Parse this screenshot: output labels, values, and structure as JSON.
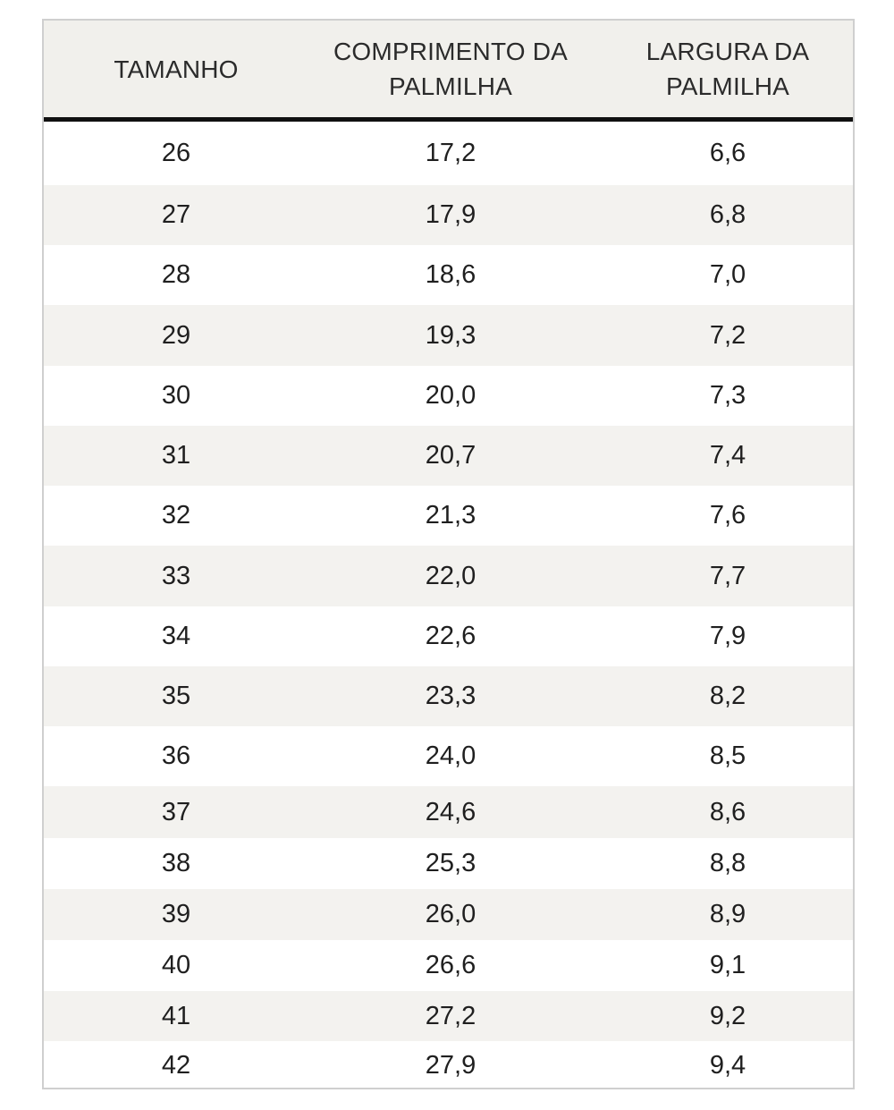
{
  "table": {
    "headers": [
      [
        "TAMANHO"
      ],
      [
        "COMPRIMENTO DA",
        "PALMILHA"
      ],
      [
        "LARGURA DA",
        "PALMILHA"
      ]
    ],
    "rows": [
      [
        "26",
        "17,2",
        "6,6"
      ],
      [
        "27",
        "17,9",
        "6,8"
      ],
      [
        "28",
        "18,6",
        "7,0"
      ],
      [
        "29",
        "19,3",
        "7,2"
      ],
      [
        "30",
        "20,0",
        "7,3"
      ],
      [
        "31",
        "20,7",
        "7,4"
      ],
      [
        "32",
        "21,3",
        "7,6"
      ],
      [
        "33",
        "22,0",
        "7,7"
      ],
      [
        "34",
        "22,6",
        "7,9"
      ],
      [
        "35",
        "23,3",
        "8,2"
      ],
      [
        "36",
        "24,0",
        "8,5"
      ],
      [
        "37",
        "24,6",
        "8,6"
      ],
      [
        "38",
        "25,3",
        "8,8"
      ],
      [
        "39",
        "26,0",
        "8,9"
      ],
      [
        "40",
        "26,6",
        "9,1"
      ],
      [
        "41",
        "27,2",
        "9,2"
      ],
      [
        "42",
        "27,9",
        "9,4"
      ]
    ]
  },
  "colors": {
    "header_bg": "#f1f0ec",
    "row_shade": "#f3f2ef",
    "divider": "#111111",
    "text": "#1f1f1f"
  }
}
